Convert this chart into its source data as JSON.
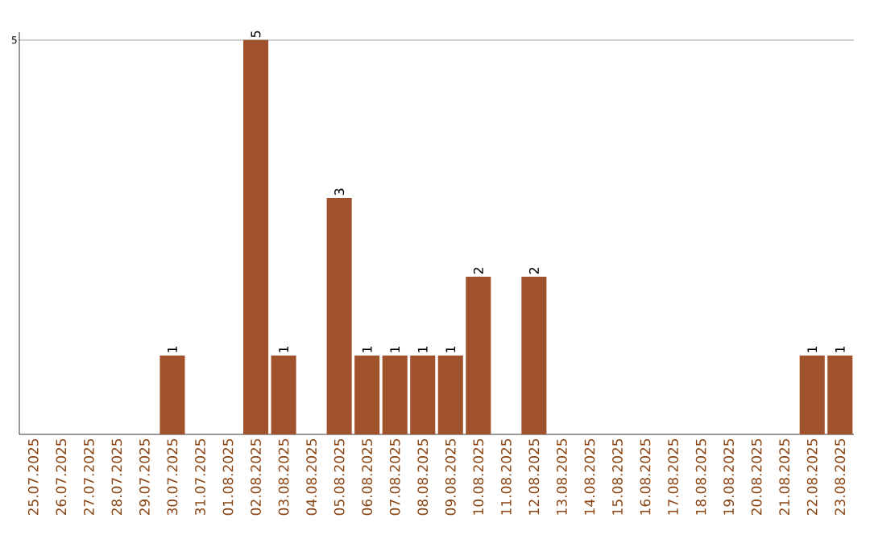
{
  "chart_data": {
    "type": "bar",
    "categories": [
      "25.07.2025",
      "26.07.2025",
      "27.07.2025",
      "28.07.2025",
      "29.07.2025",
      "30.07.2025",
      "31.07.2025",
      "01.08.2025",
      "02.08.2025",
      "03.08.2025",
      "04.08.2025",
      "05.08.2025",
      "06.08.2025",
      "07.08.2025",
      "08.08.2025",
      "09.08.2025",
      "10.08.2025",
      "11.08.2025",
      "12.08.2025",
      "13.08.2025",
      "14.08.2025",
      "15.08.2025",
      "16.08.2025",
      "17.08.2025",
      "18.08.2025",
      "19.08.2025",
      "20.08.2025",
      "21.08.2025",
      "22.08.2025",
      "23.08.2025"
    ],
    "values": [
      0,
      0,
      0,
      0,
      0,
      1,
      0,
      0,
      5,
      1,
      0,
      3,
      1,
      1,
      1,
      1,
      2,
      0,
      2,
      0,
      0,
      0,
      0,
      0,
      0,
      0,
      0,
      0,
      1,
      1
    ],
    "value_labels": [
      null,
      null,
      null,
      null,
      null,
      "1",
      null,
      null,
      "5",
      "1",
      null,
      "3",
      "1",
      "1",
      "1",
      "1",
      "2",
      null,
      "2",
      null,
      null,
      null,
      null,
      null,
      null,
      null,
      null,
      null,
      "1",
      "1"
    ],
    "color": "#a0522d",
    "ylim": [
      0,
      5.1
    ],
    "yticks": [
      5
    ],
    "grid": "y"
  }
}
